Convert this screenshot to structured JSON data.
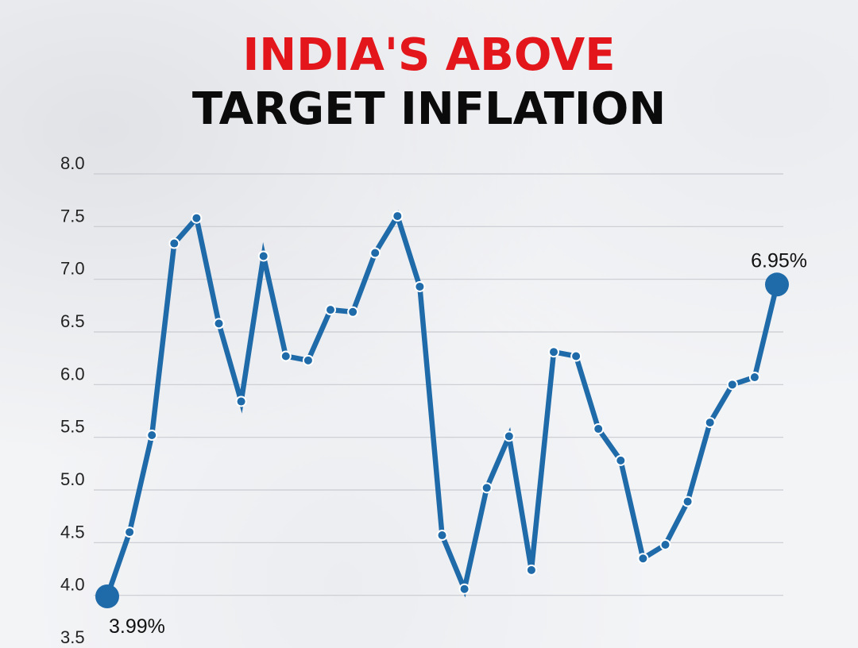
{
  "chart_data": {
    "type": "line",
    "title_line1": "INDIA'S ABOVE",
    "title_line2": "TARGET INFLATION",
    "xlabel": "",
    "ylabel": "",
    "ylim": [
      3.5,
      8.0
    ],
    "yticks": [
      "8.0",
      "7.5",
      "7.0",
      "6.5",
      "6.0",
      "5.5",
      "5.0",
      "4.5",
      "4.0",
      "3.5"
    ],
    "grid": true,
    "series": [
      {
        "values": [
          3.99,
          4.6,
          5.52,
          7.34,
          7.58,
          6.58,
          5.84,
          7.22,
          6.27,
          6.23,
          6.71,
          6.69,
          7.25,
          7.6,
          6.93,
          4.57,
          4.06,
          5.02,
          5.51,
          4.24,
          6.31,
          6.27,
          5.58,
          5.28,
          4.35,
          4.48,
          4.89,
          5.64,
          6.0,
          6.07,
          6.95
        ]
      }
    ],
    "annotations": {
      "start_label": "3.99%",
      "end_label": "6.95%"
    },
    "colors": {
      "line": "#1f6aa8",
      "title_highlight": "#e3161b",
      "title_text": "#0b0b0b",
      "grid": "#c9cbd1"
    }
  }
}
